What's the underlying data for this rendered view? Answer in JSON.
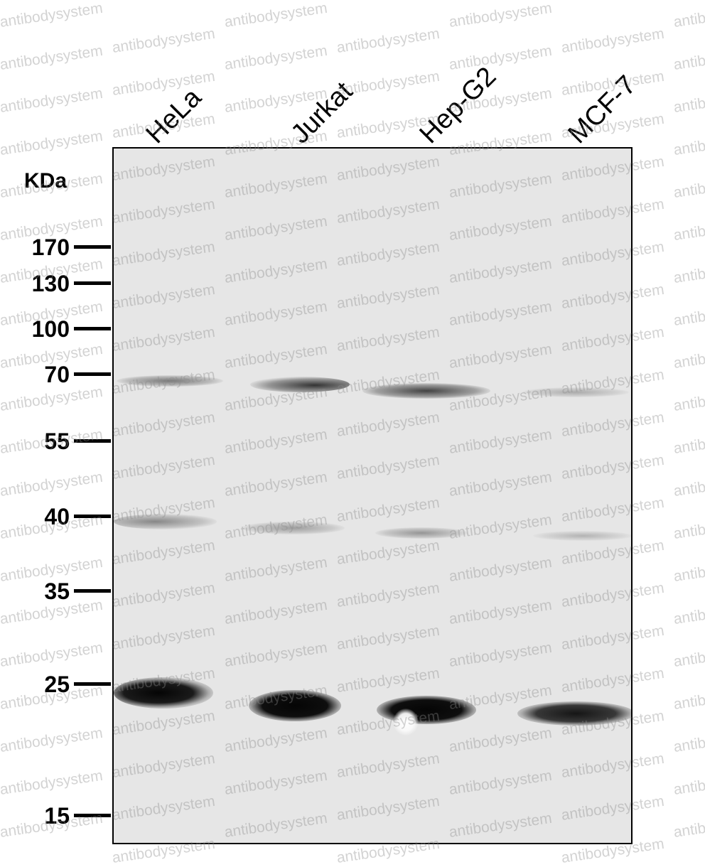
{
  "unit_label": "KDa",
  "watermark_text": "antibodysystem",
  "lanes": [
    "HeLa",
    "Jurkat",
    "Hep-G2",
    "MCF-7"
  ],
  "markers": [
    "170",
    "130",
    "100",
    "70",
    "55",
    "40",
    "35",
    "25",
    "15"
  ],
  "colors": {
    "membrane": "#e6e6e6",
    "band": "#111111",
    "frame": "#000000"
  }
}
